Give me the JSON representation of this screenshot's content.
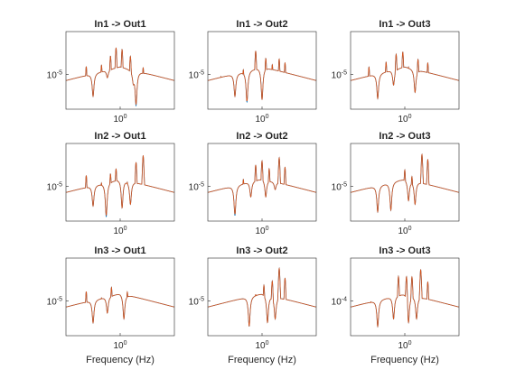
{
  "chart_data": {
    "type": "line",
    "xscale": "log",
    "yscale": "log",
    "grid": false,
    "colors": {
      "series_1": "#0072BD",
      "series_2": "#D95319",
      "axes": "#262626"
    },
    "x_tick_label": "10^0",
    "xlabel": "Frequency (Hz)",
    "panels": [
      {
        "title": "In1 -> Out1",
        "y_tick_label": "10^-5",
        "peaks": [
          [
            0.42,
            0.44
          ],
          [
            0.62,
            0.42
          ],
          [
            0.78,
            0.28
          ],
          [
            0.9,
            0.2
          ],
          [
            1.05,
            0.22
          ],
          [
            1.3,
            0.25
          ],
          [
            1.8,
            0.45
          ],
          [
            2.9,
            0.95
          ]
        ],
        "notches": [
          [
            0.5,
            0.85
          ],
          [
            0.72,
            0.6
          ],
          [
            1.4,
            0.65
          ],
          [
            1.5,
            0.98
          ]
        ]
      },
      {
        "title": "In1 -> Out2",
        "y_tick_label": "10^-5",
        "peaks": [
          [
            0.35,
            0.58
          ],
          [
            0.62,
            0.45
          ],
          [
            0.85,
            0.22
          ],
          [
            0.95,
            0.5
          ],
          [
            1.1,
            0.3
          ],
          [
            1.3,
            0.42
          ],
          [
            1.55,
            0.35
          ],
          [
            1.8,
            0.4
          ],
          [
            2.9,
            0.95
          ]
        ],
        "notches": [
          [
            0.5,
            0.85
          ],
          [
            0.68,
            0.93
          ],
          [
            1.0,
            0.9
          ]
        ]
      },
      {
        "title": "In1 -> Out3",
        "y_tick_label": "10^-5",
        "peaks": [
          [
            0.4,
            0.45
          ],
          [
            0.62,
            0.38
          ],
          [
            0.8,
            0.22
          ],
          [
            0.95,
            0.25
          ],
          [
            1.1,
            0.45
          ],
          [
            1.4,
            0.3
          ],
          [
            1.8,
            0.4
          ],
          [
            2.9,
            0.95
          ]
        ],
        "notches": [
          [
            0.5,
            0.88
          ],
          [
            0.75,
            0.7
          ],
          [
            1.3,
            0.8
          ]
        ]
      },
      {
        "title": "In2 -> Out1",
        "y_tick_label": "10^-5",
        "peaks": [
          [
            0.42,
            0.4
          ],
          [
            0.62,
            0.48
          ],
          [
            0.78,
            0.35
          ],
          [
            0.9,
            0.3
          ],
          [
            1.2,
            0.45
          ],
          [
            1.5,
            0.22
          ],
          [
            1.8,
            0.15
          ],
          [
            2.9,
            0.96
          ]
        ],
        "notches": [
          [
            0.5,
            0.82
          ],
          [
            0.7,
            0.97
          ],
          [
            1.05,
            0.85
          ],
          [
            1.3,
            0.8
          ]
        ]
      },
      {
        "title": "In2 -> Out2",
        "y_tick_label": "10^-5",
        "peaks": [
          [
            0.4,
            0.65
          ],
          [
            0.62,
            0.45
          ],
          [
            0.85,
            0.25
          ],
          [
            1.0,
            0.18
          ],
          [
            1.2,
            0.28
          ],
          [
            1.55,
            0.15
          ],
          [
            1.8,
            0.3
          ],
          [
            2.9,
            0.98
          ]
        ],
        "notches": [
          [
            0.5,
            0.95
          ],
          [
            0.75,
            0.7
          ],
          [
            1.1,
            0.7
          ],
          [
            1.4,
            0.6
          ]
        ]
      },
      {
        "title": "In2 -> Out3",
        "y_tick_label": "10^-5",
        "peaks": [
          [
            0.42,
            0.75
          ],
          [
            0.62,
            0.65
          ],
          [
            0.78,
            0.55
          ],
          [
            1.0,
            0.3
          ],
          [
            1.2,
            0.35
          ],
          [
            1.55,
            0.12
          ],
          [
            1.8,
            0.2
          ],
          [
            2.9,
            0.97
          ]
        ],
        "notches": [
          [
            0.5,
            0.9
          ],
          [
            0.7,
            0.88
          ],
          [
            1.1,
            0.75
          ],
          [
            1.3,
            0.8
          ]
        ]
      },
      {
        "title": "In3 -> Out1",
        "y_tick_label": "10^-5",
        "peaks": [
          [
            0.42,
            0.42
          ],
          [
            0.62,
            0.5
          ],
          [
            0.8,
            0.35
          ],
          [
            1.0,
            0.45
          ],
          [
            1.2,
            0.4
          ],
          [
            1.5,
            0.55
          ],
          [
            2.9,
            0.96
          ]
        ],
        "notches": [
          [
            0.5,
            0.85
          ],
          [
            0.72,
            0.72
          ],
          [
            1.1,
            0.8
          ]
        ]
      },
      {
        "title": "In3 -> Out2",
        "y_tick_label": "10^-5",
        "peaks": [
          [
            0.5,
            0.75
          ],
          [
            0.62,
            0.55
          ],
          [
            0.85,
            0.45
          ],
          [
            1.05,
            0.3
          ],
          [
            1.3,
            0.2
          ],
          [
            1.55,
            0.08
          ],
          [
            1.8,
            0.25
          ],
          [
            2.9,
            0.98
          ]
        ],
        "notches": [
          [
            0.72,
            0.9
          ],
          [
            1.15,
            0.85
          ],
          [
            1.4,
            0.8
          ]
        ]
      },
      {
        "title": "In3 -> Out3",
        "y_tick_label": "10^-4",
        "peaks": [
          [
            0.42,
            0.55
          ],
          [
            0.62,
            0.6
          ],
          [
            0.85,
            0.2
          ],
          [
            1.05,
            0.05
          ],
          [
            1.2,
            0.15
          ],
          [
            1.5,
            0.1
          ],
          [
            1.8,
            0.3
          ],
          [
            2.9,
            0.96
          ]
        ],
        "notches": [
          [
            0.5,
            0.9
          ],
          [
            0.75,
            0.8
          ],
          [
            1.1,
            0.85
          ],
          [
            1.35,
            0.8
          ]
        ]
      }
    ]
  }
}
